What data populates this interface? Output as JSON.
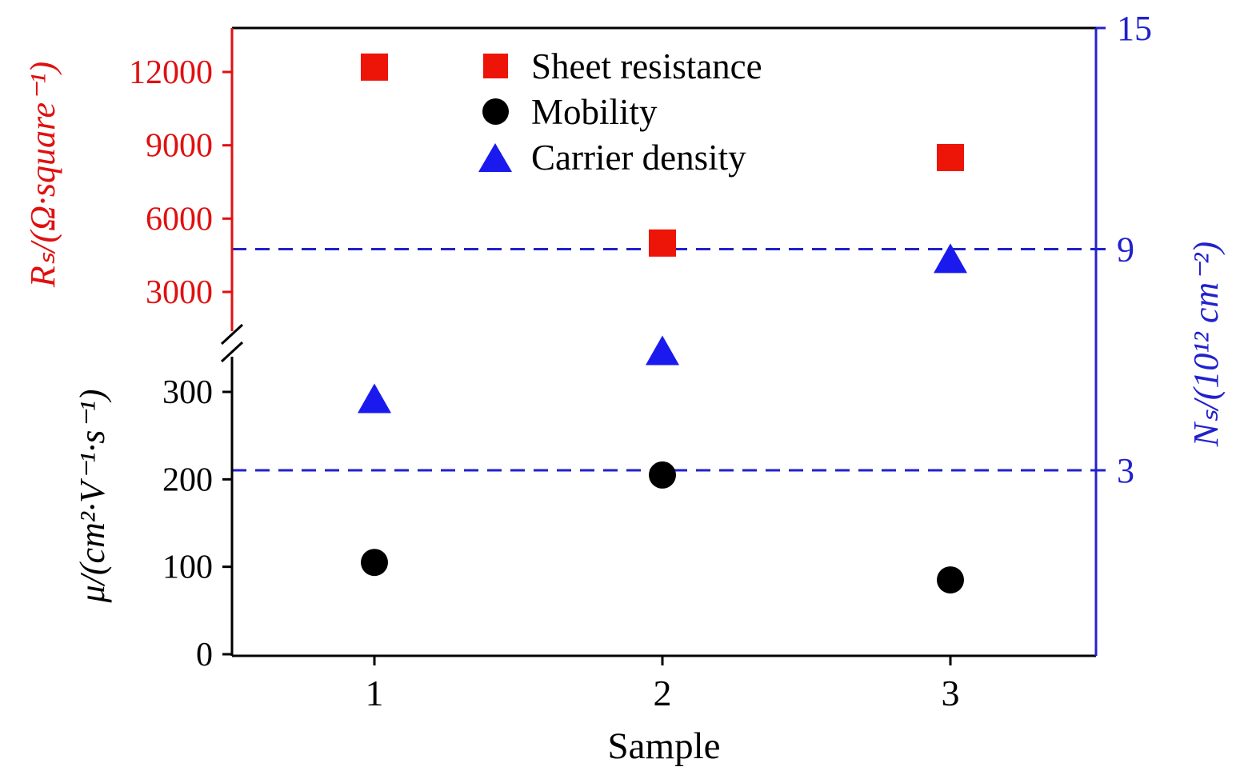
{
  "chart_data": {
    "type": "scatter",
    "title": "",
    "xlabel": "Sample",
    "x_categories": [
      1,
      2,
      3
    ],
    "series": [
      {
        "name": "Sheet resistance",
        "axis": "rs",
        "marker": "square",
        "color": "#ec1507",
        "values": [
          12200,
          5000,
          8500
        ]
      },
      {
        "name": "Mobility",
        "axis": "mu",
        "marker": "circle",
        "color": "#000000",
        "values": [
          105,
          205,
          85
        ]
      },
      {
        "name": "Carrier density",
        "axis": "ns",
        "marker": "triangle",
        "color": "#1a1aee",
        "values": [
          4.9,
          6.2,
          8.7
        ]
      }
    ],
    "axes": {
      "x": {
        "label": "Sample",
        "ticks": [
          1,
          2,
          3
        ],
        "range": [
          0.5,
          3.5
        ],
        "color": "#000000"
      },
      "rs": {
        "label": "Rₛ/(Ω·square⁻¹)",
        "ticks": [
          3000,
          6000,
          9000,
          12000
        ],
        "range": [
          1500,
          13800
        ],
        "color": "#e01010",
        "side": "left-top"
      },
      "mu": {
        "label": "μ/(cm²·V⁻¹·s⁻¹)",
        "ticks": [
          0,
          100,
          200,
          300
        ],
        "range": [
          0,
          340
        ],
        "color": "#000000",
        "side": "left-bottom"
      },
      "ns": {
        "label": "Nₛ/(10¹² cm⁻²)",
        "ticks": [
          3,
          9,
          15
        ],
        "range": [
          -2,
          15
        ],
        "color": "#2121cc",
        "side": "right"
      }
    },
    "reference_lines": [
      {
        "axis": "ns",
        "value": 9,
        "style": "dashed",
        "color": "#2121cc"
      },
      {
        "axis": "ns",
        "value": 3,
        "style": "dashed",
        "color": "#2121cc"
      }
    ],
    "legend": {
      "position": "upper-center",
      "entries": [
        "Sheet resistance",
        "Mobility",
        "Carrier density"
      ]
    },
    "axis_break": {
      "present": true,
      "axis": "left",
      "between": [
        "mu",
        "rs"
      ]
    },
    "grid": false
  }
}
